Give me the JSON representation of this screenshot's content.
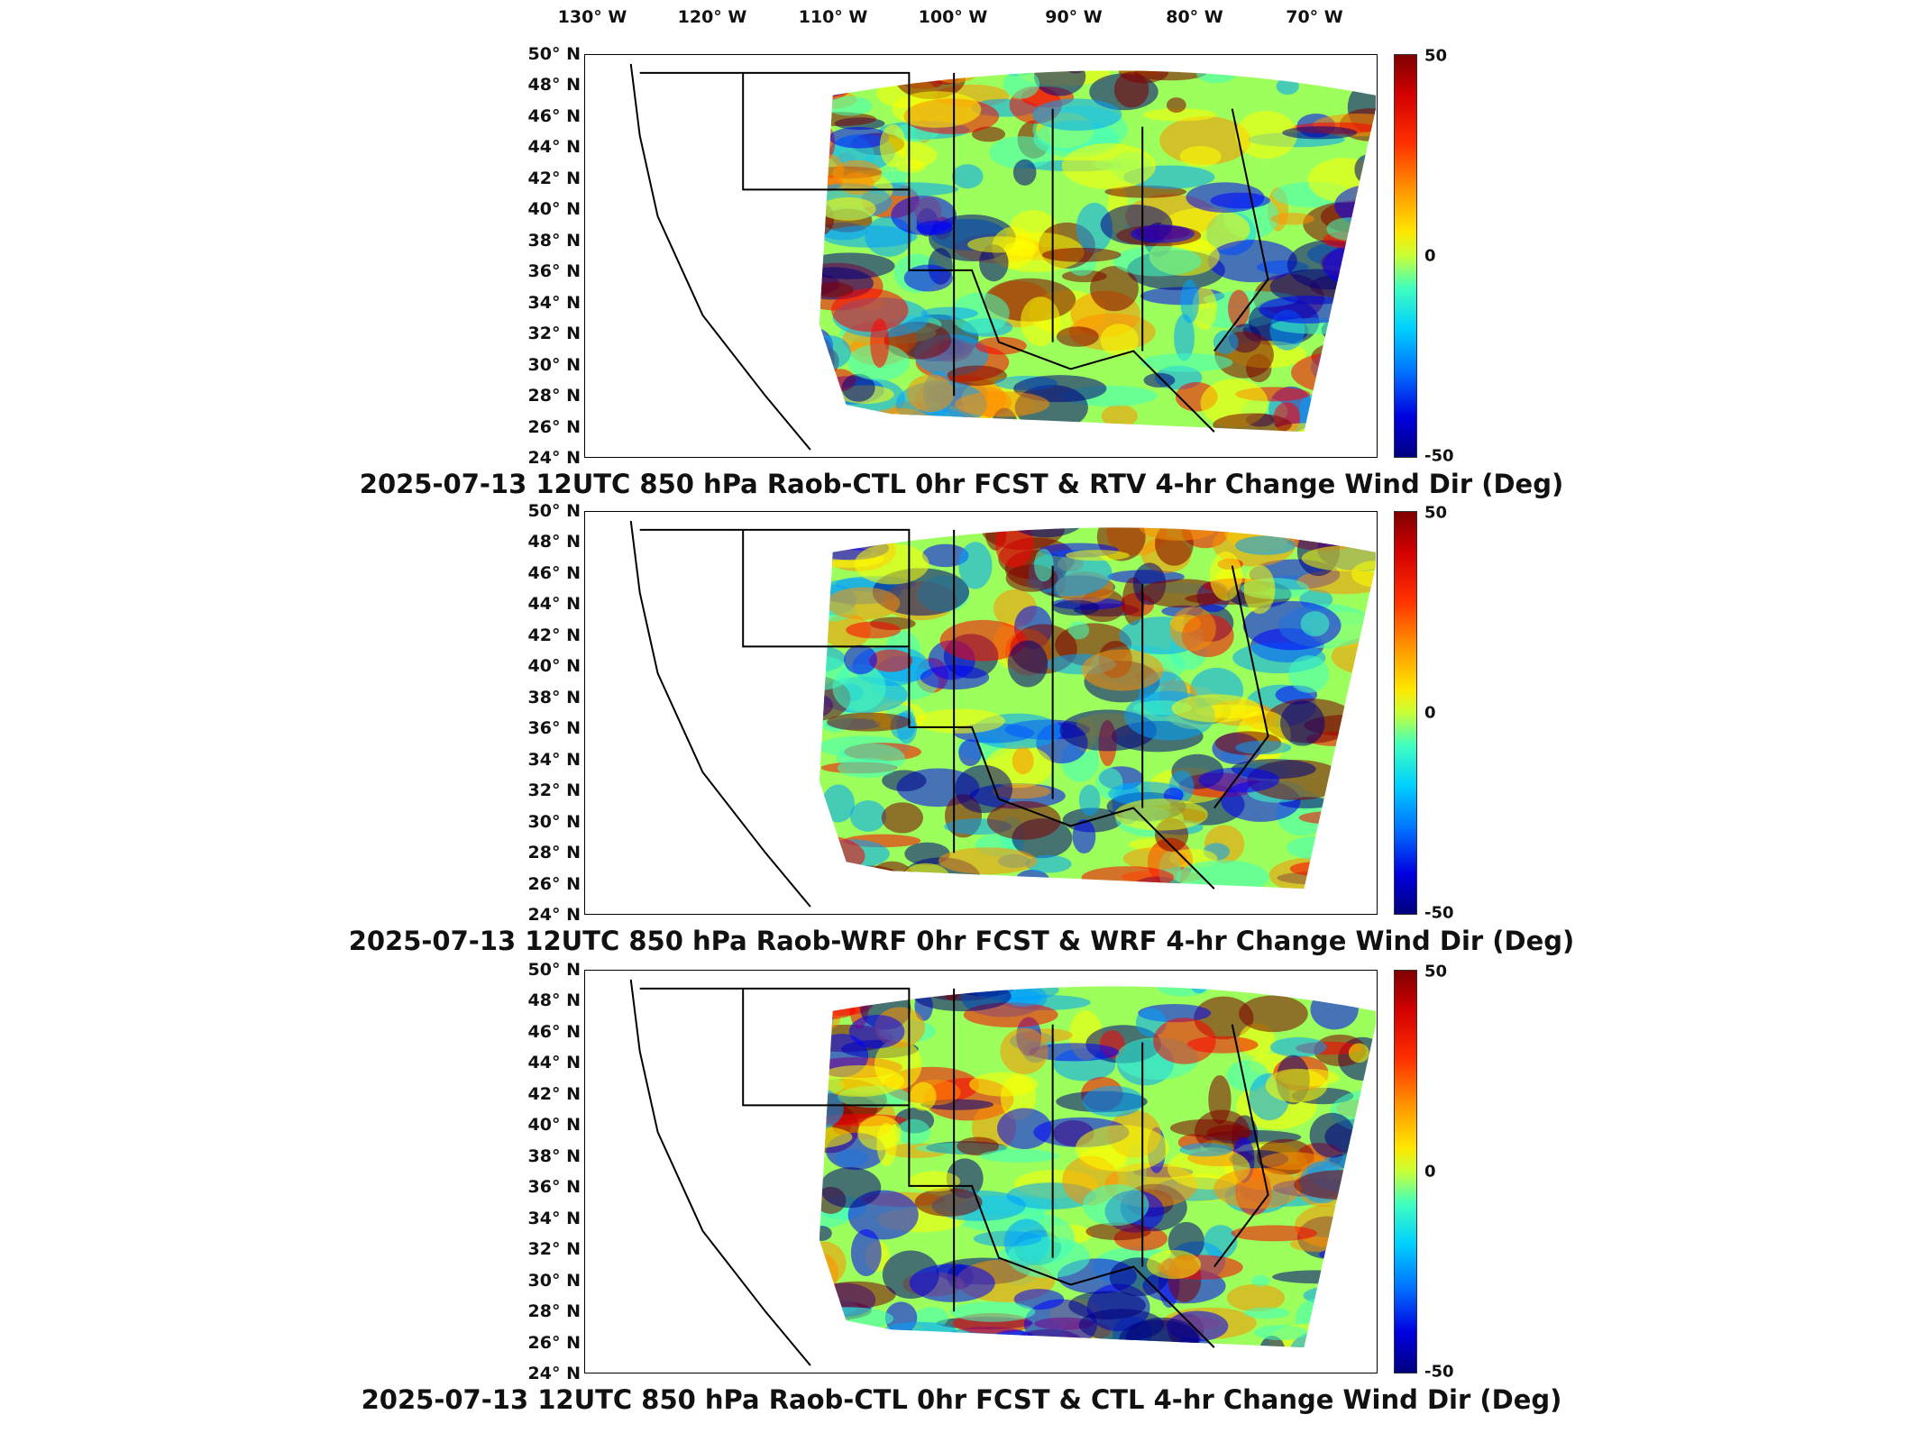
{
  "longitude_labels": [
    "130° W",
    "120° W",
    "110° W",
    "100° W",
    "90° W",
    "80° W",
    "70° W"
  ],
  "latitude_labels": [
    "50° N",
    "48° N",
    "46° N",
    "44° N",
    "42° N",
    "40° N",
    "38° N",
    "36° N",
    "34° N",
    "32° N",
    "30° N",
    "28° N",
    "26° N",
    "24° N"
  ],
  "colorbar": {
    "max_label": "50",
    "mid_label": "0",
    "min_label": "-50",
    "colormap": "jet",
    "colors": [
      "#7f0000",
      "#ff0000",
      "#ff9000",
      "#ffff00",
      "#40ffbf",
      "#00a0ff",
      "#0000ff",
      "#00007f"
    ]
  },
  "panels": [
    {
      "title": "2025-07-13 12UTC 850 hPa Raob-CTL 0hr FCST & RTV 4-hr Change Wind Dir (Deg)"
    },
    {
      "title": "2025-07-13 12UTC 850 hPa Raob-WRF 0hr FCST & WRF 4-hr Change Wind Dir (Deg)"
    },
    {
      "title": "2025-07-13 12UTC 850 hPa Raob-CTL 0hr FCST & CTL 4-hr Change Wind Dir (Deg)"
    }
  ]
}
